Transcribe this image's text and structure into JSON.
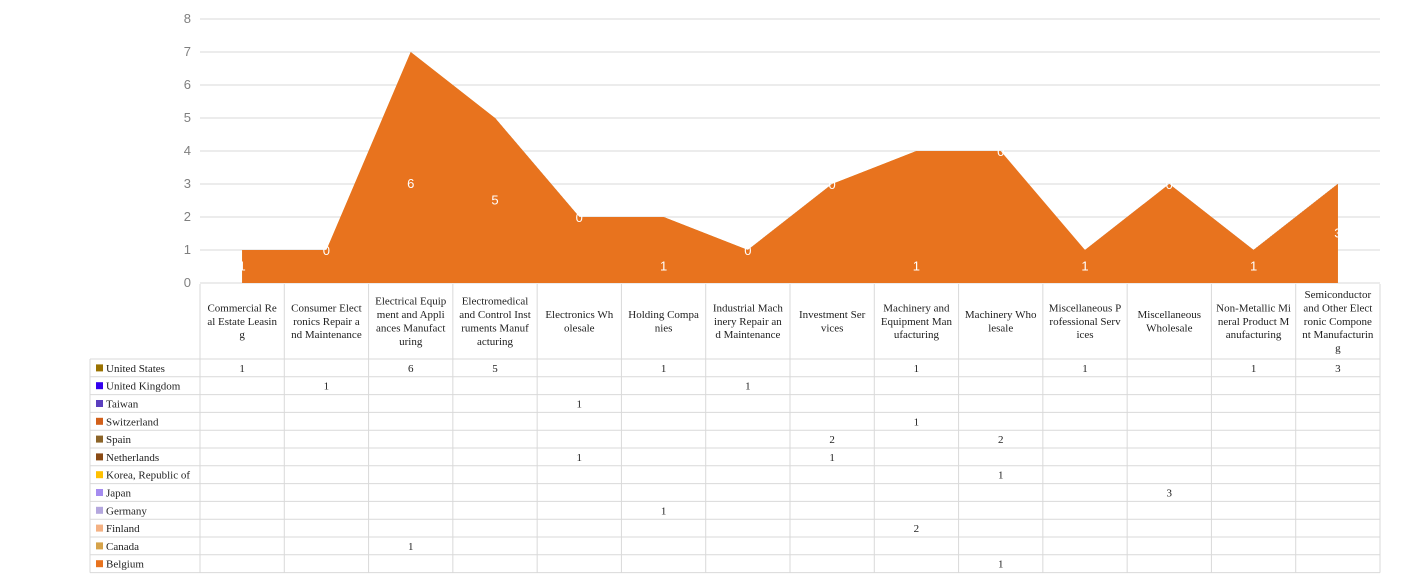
{
  "chart_data": {
    "type": "area",
    "stacked": true,
    "y_axis": {
      "min": 0,
      "max": 8,
      "step": 1
    },
    "grid": true,
    "legend_placement": "data-table-left",
    "categories": [
      "Commercial Real Estate Leasing",
      "Consumer Electronics Repair and Maintenance",
      "Electrical Equipment and Appliances Manufacturing",
      "Electromedical and Control Instruments Manufacturing",
      "Electronics Wholesale",
      "Holding Companies",
      "Industrial Machinery Repair and Maintenance",
      "Investment Services",
      "Machinery and Equipment Manufacturing",
      "Machinery Wholesale",
      "Miscellaneous Professional Services",
      "Miscellaneous Wholesale",
      "Non-Metallic Mineral Product Manufacturing",
      "Semiconductor and Other Electronic Component Manufacturing"
    ],
    "category_label_lines": [
      [
        "Commercial Re",
        "al Estate Leasin",
        "g"
      ],
      [
        "Consumer Elect",
        "ronics Repair a",
        "nd Maintenance"
      ],
      [
        "Electrical Equip",
        "ment and Appli",
        "ances Manufact",
        "uring"
      ],
      [
        "Electromedical",
        "and Control Inst",
        "ruments Manuf",
        "acturing"
      ],
      [
        "Electronics Wh",
        "olesale"
      ],
      [
        "Holding Compa",
        "nies"
      ],
      [
        "Industrial Mach",
        "inery Repair an",
        "d Maintenance"
      ],
      [
        "Investment Ser",
        "vices"
      ],
      [
        "Machinery and",
        "Equipment Man",
        "ufacturing"
      ],
      [
        "Machinery Who",
        "lesale"
      ],
      [
        "Miscellaneous P",
        "rofessional Serv",
        "ices"
      ],
      [
        "Miscellaneous",
        "Wholesale"
      ],
      [
        "Non-Metallic Mi",
        "neral Product M",
        "anufacturing"
      ],
      [
        "Semiconductor",
        "and Other Elect",
        "ronic Compone",
        "nt Manufacturin",
        "g"
      ]
    ],
    "series": [
      {
        "name": "United States",
        "color": "#9a7200",
        "values": [
          1,
          null,
          6,
          5,
          null,
          1,
          null,
          null,
          1,
          null,
          1,
          null,
          1,
          3
        ]
      },
      {
        "name": "United Kingdom",
        "color": "#3300ee",
        "values": [
          null,
          1,
          null,
          null,
          null,
          null,
          1,
          null,
          null,
          null,
          null,
          null,
          null,
          null
        ]
      },
      {
        "name": "Taiwan",
        "color": "#5b3fbf",
        "values": [
          null,
          null,
          null,
          null,
          1,
          null,
          null,
          null,
          null,
          null,
          null,
          null,
          null,
          null
        ]
      },
      {
        "name": "Switzerland",
        "color": "#d2601a",
        "values": [
          null,
          null,
          null,
          null,
          null,
          null,
          null,
          null,
          1,
          null,
          null,
          null,
          null,
          null
        ]
      },
      {
        "name": "Spain",
        "color": "#8c6428",
        "values": [
          null,
          null,
          null,
          null,
          null,
          null,
          null,
          2,
          null,
          2,
          null,
          null,
          null,
          null
        ]
      },
      {
        "name": "Netherlands",
        "color": "#8a4a14",
        "values": [
          null,
          null,
          null,
          null,
          1,
          null,
          null,
          1,
          null,
          null,
          null,
          null,
          null,
          null
        ]
      },
      {
        "name": "Korea, Republic of",
        "color": "#ffc000",
        "values": [
          null,
          null,
          null,
          null,
          null,
          null,
          null,
          null,
          null,
          1,
          null,
          null,
          null,
          null
        ]
      },
      {
        "name": "Japan",
        "color": "#a58cf0",
        "values": [
          null,
          null,
          null,
          null,
          null,
          null,
          null,
          null,
          null,
          null,
          null,
          3,
          null,
          null
        ]
      },
      {
        "name": "Germany",
        "color": "#b4a7de",
        "values": [
          null,
          null,
          null,
          null,
          null,
          1,
          null,
          null,
          null,
          null,
          null,
          null,
          null,
          null
        ]
      },
      {
        "name": "Finland",
        "color": "#f4b183",
        "values": [
          null,
          null,
          null,
          null,
          null,
          null,
          null,
          null,
          2,
          null,
          null,
          null,
          null,
          null
        ]
      },
      {
        "name": "Canada",
        "color": "#d6a34a",
        "values": [
          null,
          null,
          1,
          null,
          null,
          null,
          null,
          null,
          null,
          null,
          null,
          null,
          null,
          null
        ]
      },
      {
        "name": "Belgium",
        "color": "#e8731e",
        "values": [
          null,
          null,
          null,
          null,
          null,
          null,
          null,
          null,
          null,
          1,
          null,
          null,
          null,
          null
        ]
      }
    ],
    "top_series_labels": [
      {
        "series": "United States",
        "index": 0,
        "text": "1"
      },
      {
        "series": "United States",
        "index": 1,
        "text": "0"
      },
      {
        "series": "United States",
        "index": 2,
        "text": "6"
      },
      {
        "series": "United States",
        "index": 3,
        "text": "5"
      },
      {
        "series": "United States",
        "index": 4,
        "text": "0"
      },
      {
        "series": "United States",
        "index": 5,
        "text": "1"
      },
      {
        "series": "United States",
        "index": 6,
        "text": "0"
      },
      {
        "series": "United States",
        "index": 7,
        "text": "0"
      },
      {
        "series": "United States",
        "index": 8,
        "text": "1"
      },
      {
        "series": "United States",
        "index": 9,
        "text": "0"
      },
      {
        "series": "United States",
        "index": 10,
        "text": "1"
      },
      {
        "series": "United States",
        "index": 11,
        "text": "0"
      },
      {
        "series": "United States",
        "index": 12,
        "text": "1"
      },
      {
        "series": "United States",
        "index": 13,
        "text": "3"
      }
    ]
  }
}
